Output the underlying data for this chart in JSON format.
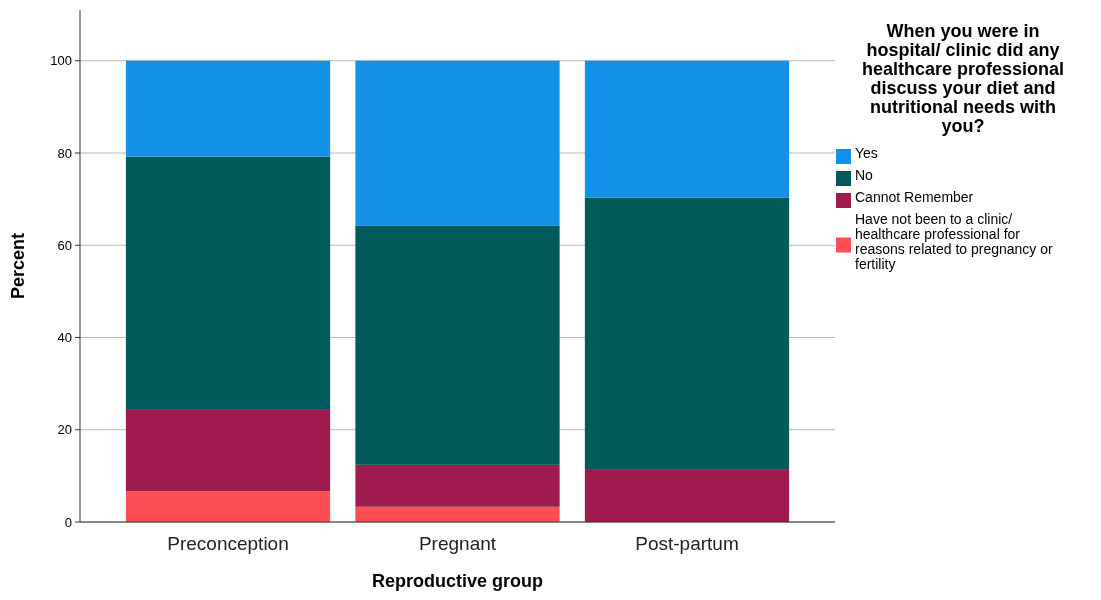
{
  "chart_data": {
    "type": "bar",
    "stacked": true,
    "xlabel": "Reproductive group",
    "ylabel": "Percent",
    "legend_title": "When you were in hospital/ clinic did any healthcare professional discuss your diet and nutritional needs with you?",
    "categories": [
      "Preconception",
      "Pregnant",
      "Post-partum"
    ],
    "series": [
      {
        "name": "Have not been to a clinic/ healthcare professional for reasons related to pregnancy or fertility",
        "color": "#fc4e55",
        "values": [
          6.7,
          3.3,
          0
        ]
      },
      {
        "name": "Cannot Remember",
        "color": "#9e1a4f",
        "values": [
          17.6,
          9.1,
          11.3
        ]
      },
      {
        "name": "No",
        "color": "#025959",
        "values": [
          54.9,
          51.8,
          59.0
        ]
      },
      {
        "name": "Yes",
        "color": "#1491e6",
        "values": [
          20.8,
          35.8,
          29.7
        ]
      }
    ],
    "ylim": [
      0,
      111
    ],
    "yticks": [
      0,
      20,
      40,
      60,
      80,
      100
    ],
    "grid": "y",
    "legend": "right"
  }
}
